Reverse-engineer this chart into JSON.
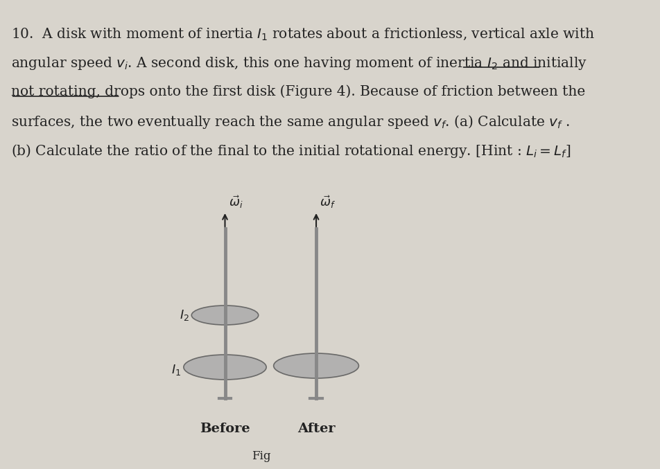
{
  "background_color": "#d8d4cc",
  "page_bg": "#e8e4dc",
  "problem_number": "10.",
  "text_lines": [
    "10.  A disk with moment of inertia $I_1$ rotates about a frictionless, vertical axle with",
    "angular speed $v_i$. A second disk, this one having moment of inertia $I_2$ and \\underline{initially}",
    "\\underline{not rotating}, drops onto the first disk (Figure 4). Because of friction between the",
    "surfaces, the two eventually reach the same angular speed $v_f$. (a) Calculate $v_f$ .",
    "(b) Calculate the ratio of the final to the initial rotational energy. [Hint : $L_i = L_f$]"
  ],
  "before_label": "Before",
  "after_label": "After",
  "fig_label": "Fig",
  "omega_i_label": "$\\vec{\\omega}_i$",
  "omega_f_label": "$\\vec{\\omega}_f$",
  "I1_label": "$I_1$",
  "I2_label": "$I_2$",
  "disk_color": "#aaaaaa",
  "axle_color": "#888888",
  "text_color": "#222222",
  "underline_color": "#333333",
  "font_size_text": 14.5,
  "font_size_labels": 13,
  "font_size_caption": 14
}
